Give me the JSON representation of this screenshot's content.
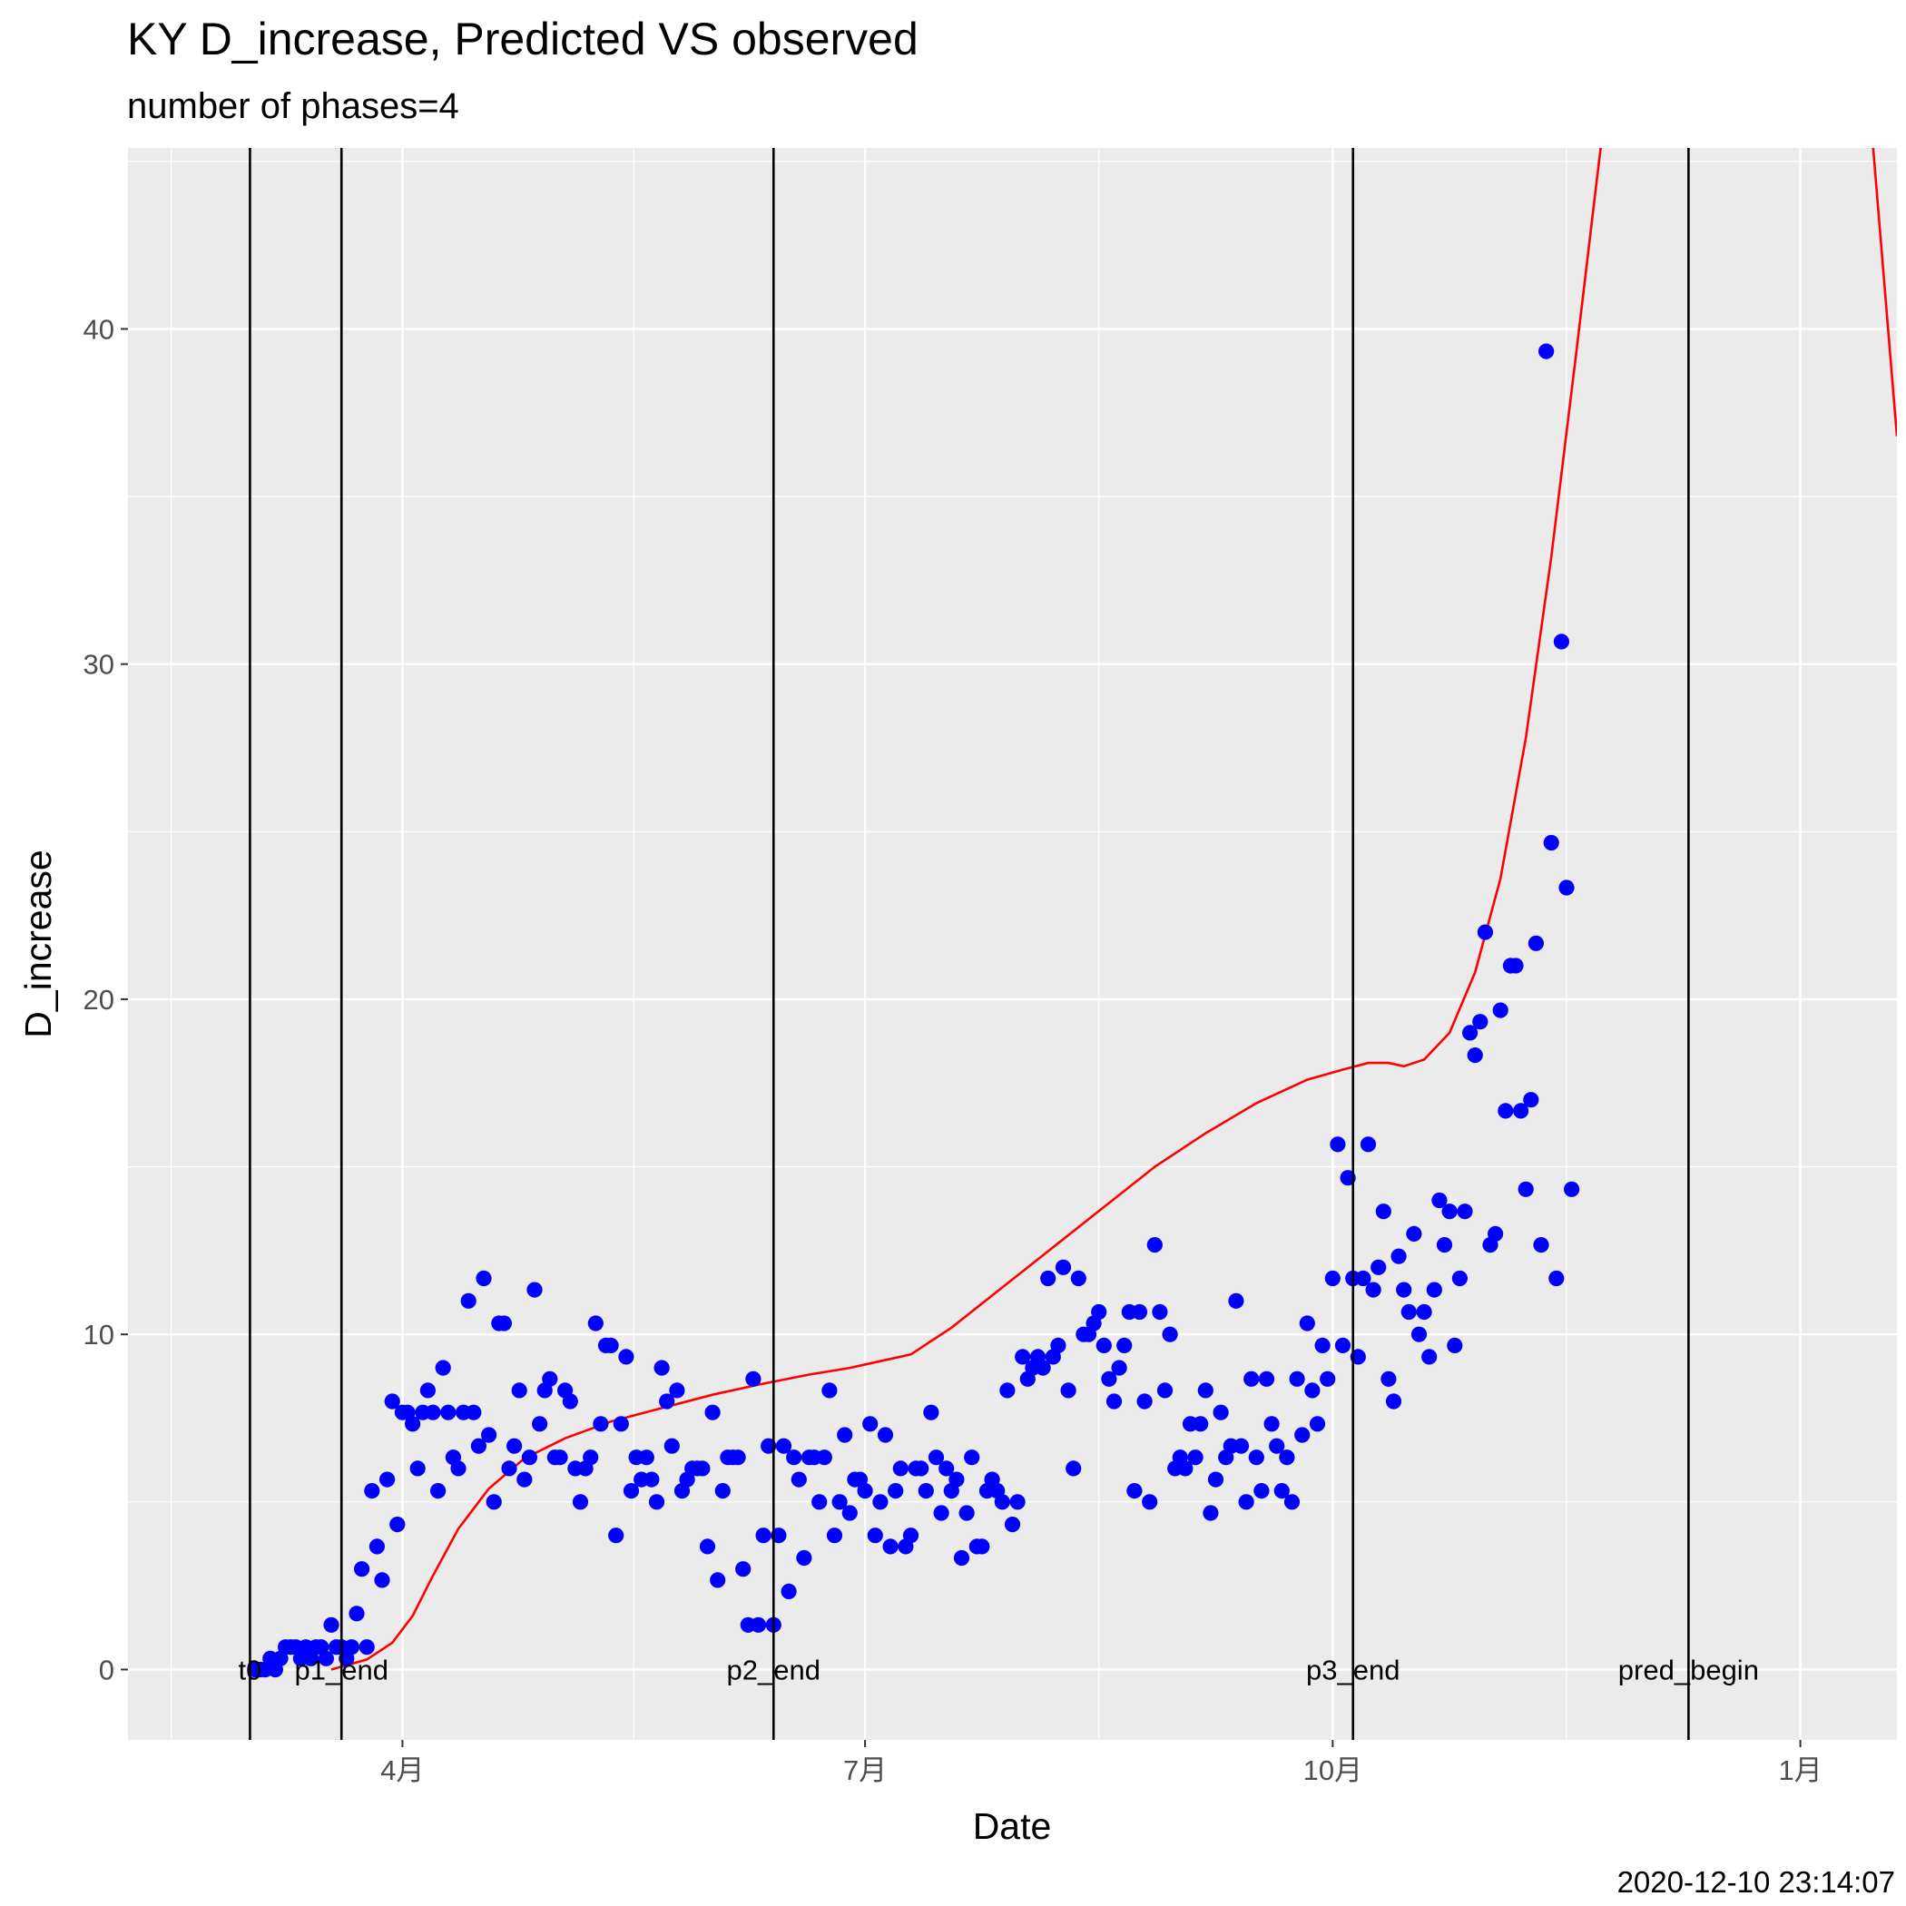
{
  "chart_data": {
    "type": "scatter",
    "title": "KY D_increase, Predicted VS observed",
    "subtitle": "number of phases=4",
    "xlabel": "Date",
    "ylabel": "D_increase",
    "caption": "2020-12-10 23:14:07",
    "x_type": "date",
    "xlim": [
      "2020-02-07",
      "2021-01-20"
    ],
    "ylim": [
      -2.1,
      45.4
    ],
    "x_ticks": [
      {
        "date": "2020-04-01",
        "label": "4月"
      },
      {
        "date": "2020-07-01",
        "label": "7月"
      },
      {
        "date": "2020-10-01",
        "label": "10月"
      },
      {
        "date": "2021-01-01",
        "label": "1月"
      }
    ],
    "y_ticks": [
      0,
      10,
      20,
      30,
      40
    ],
    "grid": true,
    "legend": "none",
    "vlines": [
      {
        "date": "2020-03-02",
        "label": "t0"
      },
      {
        "date": "2020-03-20",
        "label": "p1_end"
      },
      {
        "date": "2020-06-13",
        "label": "p2_end"
      },
      {
        "date": "2020-10-05",
        "label": "p3_end"
      },
      {
        "date": "2020-12-10",
        "label": "pred_begin"
      }
    ],
    "series": [
      {
        "name": "observed",
        "mark": "point",
        "color": "#0000ff",
        "start_date": "2020-03-03",
        "step_days": 1,
        "values": [
          0,
          0,
          0,
          0.33,
          0,
          0.33,
          0.67,
          0.67,
          0.67,
          0.33,
          0.67,
          0.33,
          0.67,
          0.67,
          0.33,
          1.33,
          0.67,
          0.67,
          0.33,
          0.67,
          1.67,
          3,
          0.67,
          5.33,
          3.67,
          2.67,
          5.67,
          8,
          4.33,
          7.67,
          7.67,
          7.33,
          6,
          7.67,
          8.33,
          7.67,
          5.33,
          9,
          7.67,
          6.33,
          6,
          7.67,
          11,
          7.67,
          6.67,
          11.67,
          7,
          5,
          10.33,
          10.33,
          6,
          6.67,
          8.33,
          5.67,
          6.33,
          11.33,
          7.33,
          8.33,
          8.67,
          6.33,
          6.33,
          8.33,
          8,
          6,
          5,
          6,
          6.33,
          10.33,
          7.33,
          9.67,
          9.67,
          4,
          7.33,
          9.33,
          5.33,
          6.33,
          5.67,
          6.33,
          5.67,
          5,
          9,
          8,
          6.67,
          8.33,
          5.33,
          5.67,
          6,
          6,
          6,
          3.67,
          7.67,
          2.67,
          5.33,
          6.33,
          6.33,
          6.33,
          3,
          1.33,
          8.67,
          1.33,
          4,
          6.67,
          1.33,
          4,
          6.67,
          2.33,
          6.33,
          5.67,
          3.33,
          6.33,
          6.33,
          5,
          6.33,
          8.33,
          4,
          5,
          7,
          4.67,
          5.67,
          5.67,
          5.33,
          7.33,
          4,
          5,
          7,
          3.67,
          5.33,
          6,
          3.67,
          4,
          6,
          6,
          5.33,
          7.67,
          6.33,
          4.67,
          6,
          5.33,
          5.67,
          3.33,
          4.67,
          6.33,
          3.67,
          3.67,
          5.33,
          5.67,
          5.33,
          5,
          8.33,
          4.33,
          5,
          9.33,
          8.67,
          9,
          9.33,
          9,
          11.67,
          9.33,
          9.67,
          12,
          8.33,
          6,
          11.67,
          10,
          10,
          10.33,
          10.67,
          9.67,
          8.67,
          8,
          9,
          9.67,
          10.67,
          5.33,
          10.67,
          8,
          5,
          12.67,
          10.67,
          8.33,
          10,
          6,
          6.33,
          6,
          7.33,
          6.33,
          7.33,
          8.33,
          4.67,
          5.67,
          7.67,
          6.33,
          6.67,
          11,
          6.67,
          5,
          8.67,
          6.33,
          5.33,
          8.67,
          7.33,
          6.67,
          5.33,
          6.33,
          5,
          8.67,
          7,
          10.33,
          8.33,
          7.33,
          9.67,
          8.67,
          11.67,
          15.67,
          9.67,
          14.67,
          11.67,
          9.33,
          11.67,
          15.67,
          11.33,
          12,
          13.67,
          8.67,
          8,
          12.33,
          11.33,
          10.67,
          13,
          10,
          10.67,
          9.33,
          11.33,
          14,
          12.67,
          13.67,
          9.67,
          11.67,
          13.67,
          19,
          18.33,
          19.33,
          22,
          12.67,
          13,
          19.67,
          16.67,
          21,
          21,
          16.67,
          14.33,
          17,
          21.67,
          12.67,
          39.33,
          24.67,
          11.67,
          30.67,
          23.33,
          14.33
        ]
      },
      {
        "name": "predicted",
        "mark": "line",
        "color": "#ff0000",
        "points": [
          [
            "2020-03-18",
            0
          ],
          [
            "2020-03-25",
            0.3
          ],
          [
            "2020-03-30",
            0.8
          ],
          [
            "2020-04-03",
            1.6
          ],
          [
            "2020-04-07",
            2.8
          ],
          [
            "2020-04-12",
            4.2
          ],
          [
            "2020-04-18",
            5.4
          ],
          [
            "2020-04-25",
            6.3
          ],
          [
            "2020-05-03",
            6.9
          ],
          [
            "2020-05-12",
            7.4
          ],
          [
            "2020-05-22",
            7.8
          ],
          [
            "2020-06-01",
            8.2
          ],
          [
            "2020-06-10",
            8.5
          ],
          [
            "2020-06-20",
            8.8
          ],
          [
            "2020-06-28",
            9.0
          ],
          [
            "2020-07-04",
            9.2
          ],
          [
            "2020-07-10",
            9.4
          ],
          [
            "2020-07-18",
            10.2
          ],
          [
            "2020-07-28",
            11.4
          ],
          [
            "2020-08-07",
            12.6
          ],
          [
            "2020-08-17",
            13.8
          ],
          [
            "2020-08-27",
            15.0
          ],
          [
            "2020-09-06",
            16.0
          ],
          [
            "2020-09-16",
            16.9
          ],
          [
            "2020-09-26",
            17.6
          ],
          [
            "2020-10-03",
            17.9
          ],
          [
            "2020-10-08",
            18.1
          ],
          [
            "2020-10-12",
            18.1
          ],
          [
            "2020-10-15",
            18.0
          ],
          [
            "2020-10-19",
            18.2
          ],
          [
            "2020-10-24",
            19.0
          ],
          [
            "2020-10-29",
            20.8
          ],
          [
            "2020-11-03",
            23.6
          ],
          [
            "2020-11-08",
            27.8
          ],
          [
            "2020-11-13",
            33.2
          ],
          [
            "2020-11-18",
            39.4
          ],
          [
            "2020-11-22",
            44.5
          ],
          [
            "2020-11-24",
            47
          ],
          [
            "2021-01-15",
            46
          ],
          [
            "2021-01-20",
            36.8
          ]
        ]
      }
    ]
  }
}
